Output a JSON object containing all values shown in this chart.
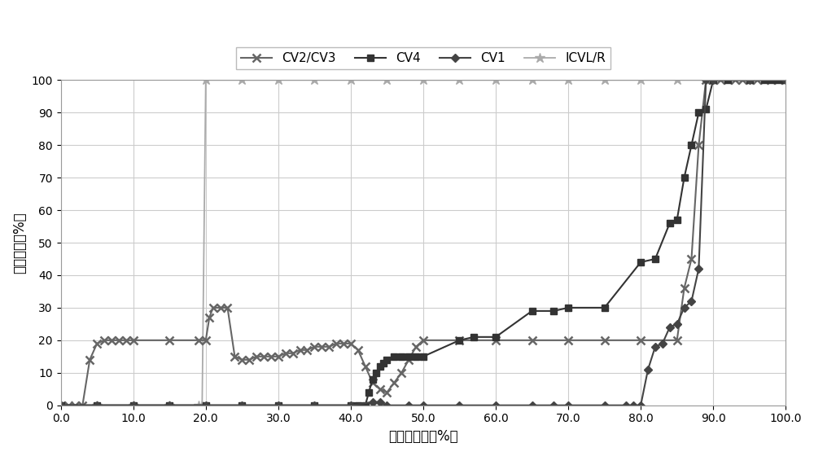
{
  "CV2CV3_x": [
    0,
    1,
    2,
    3,
    4,
    5,
    6,
    7,
    8,
    9,
    10,
    15,
    19,
    20,
    20.5,
    21,
    22,
    23,
    24,
    25,
    26,
    27,
    28,
    29,
    30,
    31,
    32,
    33,
    34,
    35,
    36,
    37,
    38,
    39,
    40,
    41,
    42,
    43,
    44,
    45,
    46,
    47,
    48,
    49,
    50,
    55,
    60,
    65,
    70,
    75,
    80,
    85,
    86,
    87,
    88,
    89,
    90,
    91,
    92,
    93,
    94,
    95,
    96,
    97,
    98,
    99,
    100
  ],
  "CV2CV3_y": [
    0,
    0,
    0,
    0,
    14,
    19,
    20,
    20,
    20,
    20,
    20,
    20,
    20,
    20,
    27,
    30,
    30,
    30,
    15,
    14,
    14,
    15,
    15,
    15,
    15,
    16,
    16,
    17,
    17,
    18,
    18,
    18,
    19,
    19,
    19,
    17,
    12,
    7,
    5,
    4,
    7,
    10,
    14,
    18,
    20,
    20,
    20,
    20,
    20,
    20,
    20,
    20,
    36,
    45,
    80,
    100,
    100,
    100,
    100,
    100,
    100,
    100,
    100,
    100,
    100,
    100,
    100
  ],
  "CV4_x": [
    0,
    5,
    10,
    15,
    20,
    25,
    30,
    35,
    40,
    41,
    42,
    42.5,
    43,
    43.5,
    44,
    44.5,
    45,
    46,
    47,
    48,
    49,
    50,
    55,
    57,
    60,
    65,
    68,
    70,
    75,
    80,
    82,
    84,
    85,
    86,
    87,
    88,
    89,
    90,
    92,
    95,
    97,
    98,
    99,
    100
  ],
  "CV4_y": [
    0,
    0,
    0,
    0,
    0,
    0,
    0,
    0,
    0,
    0,
    0,
    4,
    8,
    10,
    12,
    13,
    14,
    15,
    15,
    15,
    15,
    15,
    20,
    21,
    21,
    29,
    29,
    30,
    30,
    44,
    45,
    56,
    57,
    70,
    80,
    90,
    91,
    100,
    100,
    100,
    100,
    100,
    100,
    100
  ],
  "CV1_x": [
    0,
    5,
    10,
    15,
    20,
    25,
    30,
    35,
    40,
    43,
    44,
    45,
    48,
    50,
    55,
    60,
    65,
    68,
    70,
    75,
    78,
    79,
    80,
    81,
    82,
    83,
    84,
    85,
    86,
    87,
    88,
    89,
    90,
    95,
    100
  ],
  "CV1_y": [
    0,
    0,
    0,
    0,
    0,
    0,
    0,
    0,
    0,
    1,
    1,
    0,
    0,
    0,
    0,
    0,
    0,
    0,
    0,
    0,
    0,
    0,
    0,
    11,
    18,
    19,
    24,
    25,
    30,
    32,
    42,
    100,
    100,
    100,
    100
  ],
  "ICVLR_x": [
    0,
    5,
    10,
    15,
    19,
    19.5,
    20,
    25,
    30,
    35,
    40,
    45,
    50,
    55,
    60,
    65,
    70,
    75,
    80,
    85,
    90,
    95,
    100
  ],
  "ICVLR_y": [
    0,
    0,
    0,
    0,
    0,
    0,
    100,
    100,
    100,
    100,
    100,
    100,
    100,
    100,
    100,
    100,
    100,
    100,
    100,
    100,
    100,
    100,
    100
  ],
  "xlabel": "总阀位指令（%）",
  "ylabel": "调阀开度（%）",
  "xlim": [
    0,
    100
  ],
  "ylim": [
    0,
    100
  ],
  "xticks": [
    0.0,
    10.0,
    20.0,
    30.0,
    40.0,
    50.0,
    60.0,
    70.0,
    80.0,
    90.0,
    100.0
  ],
  "yticks": [
    0,
    10,
    20,
    30,
    40,
    50,
    60,
    70,
    80,
    90,
    100
  ],
  "legend_labels": [
    "CV2/CV3",
    "CV4",
    "CV1",
    "ICVL/R"
  ],
  "line_color_CV2CV3": "#666666",
  "line_color_CV4": "#333333",
  "line_color_CV1": "#444444",
  "line_color_ICVLR": "#aaaaaa",
  "background_color": "#ffffff",
  "grid_color": "#cccccc"
}
